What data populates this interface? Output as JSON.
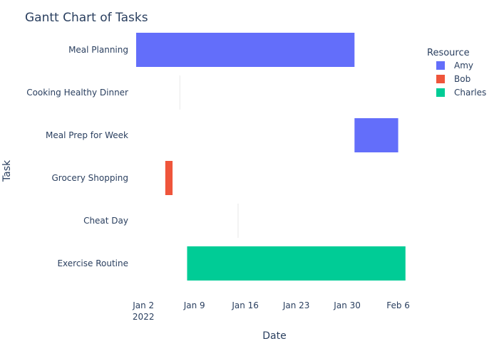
{
  "chart_data": {
    "type": "gantt",
    "title": "Gantt Chart of Tasks",
    "xlabel": "Date",
    "ylabel": "Task",
    "x_range": [
      "2022-01-01",
      "2022-02-08"
    ],
    "x_ticks": [
      {
        "date": "2022-01-02",
        "label": "Jan 2",
        "sublabel": "2022"
      },
      {
        "date": "2022-01-09",
        "label": "Jan 9"
      },
      {
        "date": "2022-01-16",
        "label": "Jan 16"
      },
      {
        "date": "2022-01-23",
        "label": "Jan 23"
      },
      {
        "date": "2022-01-30",
        "label": "Jan 30"
      },
      {
        "date": "2022-02-06",
        "label": "Feb 6"
      }
    ],
    "tasks": [
      "Meal Planning",
      "Cooking Healthy Dinner",
      "Meal Prep for Week",
      "Grocery Shopping",
      "Cheat Day",
      "Exercise Routine"
    ],
    "bars": [
      {
        "task": "Meal Planning",
        "start": "2022-01-01",
        "end": "2022-01-31",
        "resource": "Amy"
      },
      {
        "task": "Meal Prep for Week",
        "start": "2022-01-31",
        "end": "2022-02-06",
        "resource": "Amy"
      },
      {
        "task": "Grocery Shopping",
        "start": "2022-01-05",
        "end": "2022-01-06",
        "resource": "Bob"
      },
      {
        "task": "Exercise Routine",
        "start": "2022-01-08",
        "end": "2022-02-07",
        "resource": "Charles"
      },
      {
        "task": "Cooking Healthy Dinner",
        "start": "2022-01-07",
        "end": "2022-01-07",
        "resource": "Amy"
      },
      {
        "task": "Cheat Day",
        "start": "2022-01-15",
        "end": "2022-01-15",
        "resource": "Charles"
      }
    ],
    "legend": {
      "title": "Resource",
      "position": "top-right",
      "entries": [
        {
          "name": "Amy",
          "color": "#636efa"
        },
        {
          "name": "Bob",
          "color": "#ef553b"
        },
        {
          "name": "Charles",
          "color": "#00cc96"
        }
      ]
    },
    "grid": false
  }
}
